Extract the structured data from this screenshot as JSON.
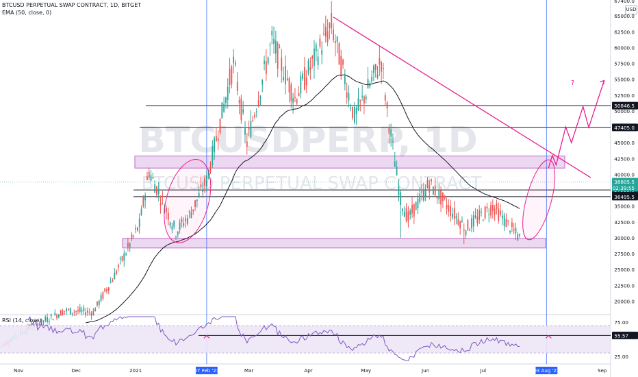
{
  "chart": {
    "title": "BTCUSD PERPETUAL SWAP CONTRACT, 1D, BITGET",
    "indicator_ema": "EMA (50, close, 0)",
    "indicator_rsi": "RSI (14, close)",
    "watermark_symbol": "BTCUSDPERP, 1D",
    "watermark_name": "BTCUSD PERPETUAL SWAP CONTRACT",
    "currency_button": "USD",
    "question_mark": "?",
    "colors": {
      "up": "#26a69a",
      "down": "#ef5350",
      "trendline": "#e91e8c",
      "zone_fill": "#e1bee7",
      "zone_border": "#ba68c8",
      "vertical_line": "#2962ff",
      "rsi_line": "#7e57c2",
      "ema_line": "#131722"
    }
  },
  "price_axis": {
    "ticks": [
      "67400.0",
      "65000.0",
      "62500.0",
      "60000.0",
      "57500.0",
      "55000.0",
      "52500.0",
      "50000.0",
      "47500.0",
      "45000.0",
      "42500.0",
      "40000.0",
      "37500.0",
      "35000.0",
      "32500.0",
      "30000.0",
      "27500.0",
      "25000.0",
      "22500.0",
      "20000.0"
    ],
    "current_price": "38805.5",
    "countdown": "02:39:55",
    "level_labels": [
      "50846.5",
      "47405.0",
      "37555.0",
      "36495.5"
    ]
  },
  "rsi_axis": {
    "ticks": [
      "75.00",
      "25.00"
    ],
    "current_value": "55.57"
  },
  "time_axis": {
    "labels": [
      "Nov",
      "Dec",
      "2021",
      "Mar",
      "Apr",
      "May",
      "Jun",
      "Jul",
      "Sep"
    ],
    "highlighted": [
      "07 Feb '21",
      "03 Aug '21"
    ]
  },
  "chart_data": {
    "type": "candlestick",
    "symbol": "BTCUSD PERPETUAL SWAP CONTRACT",
    "timeframe": "1D",
    "exchange": "BITGET",
    "current_price": 38805.5,
    "horizontal_levels": [
      50846.5,
      47405.0,
      37555.0,
      36495.5
    ],
    "zones": [
      {
        "low": 41000,
        "high": 42900
      },
      {
        "low": 28400,
        "high": 29900
      }
    ],
    "rsi_current": 55.57,
    "rsi_level": 55.57,
    "rsi_band": [
      30,
      70
    ],
    "trend_line": {
      "from": {
        "date": "2021-04-14",
        "price": 64800
      },
      "to": {
        "date": "2021-08-26",
        "price": 39500
      }
    },
    "projection_path": [
      {
        "date": "2021-08-04",
        "price": 41000
      },
      {
        "date": "2021-08-06",
        "price": 43000
      },
      {
        "date": "2021-08-08",
        "price": 41500
      },
      {
        "date": "2021-08-13",
        "price": 47500
      },
      {
        "date": "2021-08-16",
        "price": 45000
      },
      {
        "date": "2021-08-22",
        "price": 50700
      },
      {
        "date": "2021-08-25",
        "price": 47400
      },
      {
        "date": "2021-09-02",
        "price": 54800
      }
    ],
    "ellipses": [
      {
        "center_date": "2021-01-28",
        "center_price": 35800,
        "span_days": 22,
        "span_price": 13500
      },
      {
        "center_date": "2021-07-30",
        "center_price": 36000,
        "span_days": 13,
        "span_price": 13000
      }
    ],
    "price_range": [
      18000,
      67500
    ],
    "rsi_range": [
      15,
      85
    ]
  }
}
